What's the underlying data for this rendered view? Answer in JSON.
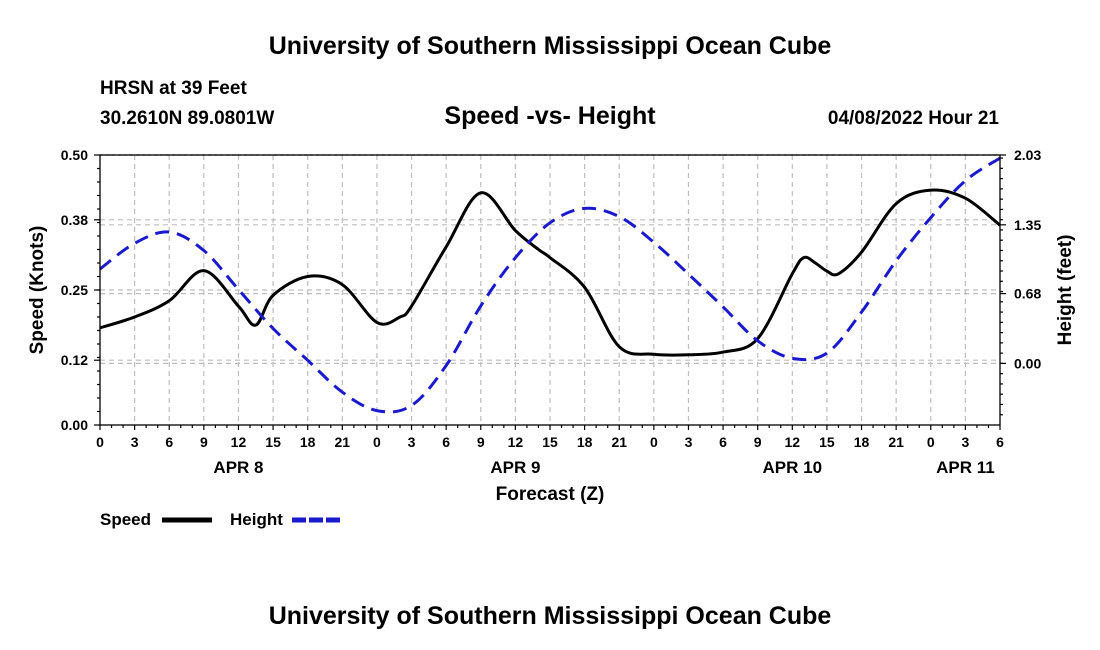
{
  "chart_data": {
    "type": "line",
    "title": "University of Southern Mississippi Ocean Cube",
    "subtitle": "Speed -vs- Height",
    "station": "HRSN at 39 Feet",
    "location": "30.2610N  89.0801W",
    "timestamp": "04/08/2022 Hour 21",
    "footer_title": "University of Southern Mississippi Ocean Cube",
    "xlabel": "Forecast (Z)",
    "ylabel_left": "Speed (Knots)",
    "ylabel_right": "Height (feet)",
    "x_range_hours": [
      0,
      78
    ],
    "x_tick_step_hours": 3,
    "x_tick_labels": [
      "0",
      "3",
      "6",
      "9",
      "12",
      "15",
      "18",
      "21",
      "0",
      "3",
      "6",
      "9",
      "12",
      "15",
      "18",
      "21",
      "0",
      "3",
      "6",
      "9",
      "12",
      "15",
      "18",
      "21",
      "0",
      "3",
      "6"
    ],
    "day_labels": [
      {
        "label": "APR 8",
        "hour": 12
      },
      {
        "label": "APR 9",
        "hour": 36
      },
      {
        "label": "APR 10",
        "hour": 60
      },
      {
        "label": "APR 11",
        "hour": 75
      }
    ],
    "y_left": {
      "min": 0.0,
      "max": 0.5,
      "ticks": [
        0.0,
        0.12,
        0.25,
        0.38,
        0.5
      ],
      "tick_labels": [
        "0.00",
        "0.12",
        "0.25",
        "0.38",
        "0.50"
      ]
    },
    "y_right": {
      "min": -0.6,
      "max": 2.03,
      "ticks": [
        0.0,
        0.68,
        1.35,
        2.03
      ],
      "tick_labels": [
        "0.00",
        "0.68",
        "1.35",
        "2.03"
      ]
    },
    "legend": [
      {
        "name": "Speed",
        "color": "#000000",
        "style": "solid"
      },
      {
        "name": "Height",
        "color": "#1a1acc",
        "style": "dashed"
      }
    ],
    "series": [
      {
        "name": "Speed",
        "axis": "left",
        "color": "#000000",
        "style": "solid",
        "x": [
          0,
          3,
          6,
          9,
          12,
          13.5,
          15,
          18,
          21,
          24,
          26,
          27,
          30,
          33,
          36,
          38,
          39,
          42,
          45,
          48,
          51,
          54,
          57,
          60,
          61,
          62,
          63,
          64,
          66,
          69,
          72,
          75,
          78
        ],
        "y": [
          0.18,
          0.2,
          0.23,
          0.286,
          0.22,
          0.185,
          0.24,
          0.275,
          0.26,
          0.19,
          0.2,
          0.22,
          0.33,
          0.43,
          0.36,
          0.325,
          0.31,
          0.255,
          0.145,
          0.131,
          0.13,
          0.135,
          0.16,
          0.28,
          0.31,
          0.3,
          0.285,
          0.28,
          0.32,
          0.41,
          0.435,
          0.42,
          0.37
        ]
      },
      {
        "name": "Height",
        "axis": "right",
        "color": "#1a1acc",
        "style": "dashed",
        "x": [
          0,
          3,
          6,
          9,
          12,
          15,
          18,
          21,
          24,
          27,
          30,
          33,
          36,
          39,
          42,
          45,
          48,
          51,
          54,
          57,
          60,
          63,
          66,
          69,
          72,
          75,
          78
        ],
        "y": [
          0.92,
          1.17,
          1.28,
          1.1,
          0.72,
          0.34,
          0.03,
          -0.28,
          -0.46,
          -0.41,
          -0.02,
          0.56,
          1.03,
          1.37,
          1.51,
          1.43,
          1.18,
          0.87,
          0.55,
          0.22,
          0.05,
          0.1,
          0.5,
          1.0,
          1.42,
          1.78,
          2.0
        ]
      }
    ]
  }
}
